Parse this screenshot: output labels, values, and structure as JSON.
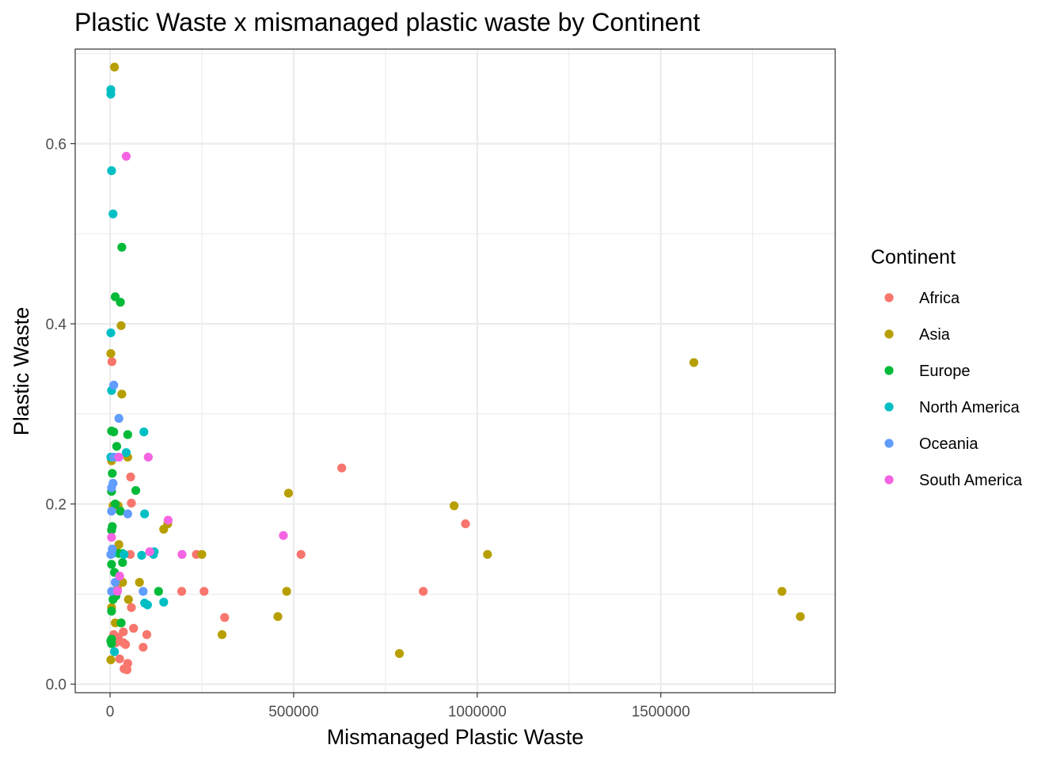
{
  "chart_data": {
    "type": "scatter",
    "title": "Plastic Waste x mismanaged plastic waste by Continent",
    "xlabel": "Mismanaged Plastic Waste",
    "ylabel": "Plastic Waste",
    "xlim": [
      -95000,
      1975000
    ],
    "ylim": [
      -0.0095,
      0.705
    ],
    "x_ticks": [
      0,
      500000,
      1000000,
      1500000
    ],
    "x_tick_labels": [
      "0",
      "500000",
      "1000000",
      "1500000"
    ],
    "x_minor_ticks": [
      250000,
      750000,
      1250000,
      1750000
    ],
    "y_ticks": [
      0.0,
      0.2,
      0.4,
      0.6
    ],
    "y_tick_labels": [
      "0.0",
      "0.2",
      "0.4",
      "0.6"
    ],
    "y_minor_ticks": [
      0.1,
      0.3,
      0.5,
      0.7
    ],
    "grid": true,
    "legend": {
      "title": "Continent",
      "position": "right"
    },
    "series": [
      {
        "name": "Africa",
        "color": "#F8766D",
        "points": [
          [
            631000,
            0.24
          ],
          [
            968000,
            0.178
          ],
          [
            520000,
            0.144
          ],
          [
            853000,
            0.103
          ],
          [
            312000,
            0.074
          ],
          [
            256000,
            0.103
          ],
          [
            235000,
            0.144
          ],
          [
            195000,
            0.103
          ],
          [
            56000,
            0.23
          ],
          [
            58000,
            0.201
          ],
          [
            55000,
            0.144
          ],
          [
            58000,
            0.085
          ],
          [
            64000,
            0.062
          ],
          [
            100000,
            0.055
          ],
          [
            90000,
            0.041
          ],
          [
            36000,
            0.058
          ],
          [
            42000,
            0.044
          ],
          [
            36000,
            0.046
          ],
          [
            48000,
            0.023
          ],
          [
            38000,
            0.017
          ],
          [
            46000,
            0.016
          ],
          [
            26000,
            0.028
          ],
          [
            22000,
            0.052
          ],
          [
            10000,
            0.055
          ],
          [
            16000,
            0.046
          ],
          [
            5000,
            0.358
          ],
          [
            20000,
            0.106
          ]
        ]
      },
      {
        "name": "Asia",
        "color": "#B79F00",
        "points": [
          [
            1590000,
            0.357
          ],
          [
            1880000,
            0.075
          ],
          [
            1830000,
            0.103
          ],
          [
            1028000,
            0.144
          ],
          [
            937000,
            0.198
          ],
          [
            788000,
            0.034
          ],
          [
            486000,
            0.212
          ],
          [
            481000,
            0.103
          ],
          [
            457000,
            0.075
          ],
          [
            305000,
            0.055
          ],
          [
            250000,
            0.144
          ],
          [
            157000,
            0.178
          ],
          [
            146000,
            0.172
          ],
          [
            80000,
            0.113
          ],
          [
            48000,
            0.252
          ],
          [
            50000,
            0.094
          ],
          [
            34000,
            0.113
          ],
          [
            32000,
            0.322
          ],
          [
            30000,
            0.398
          ],
          [
            12000,
            0.685
          ],
          [
            2000,
            0.367
          ],
          [
            4000,
            0.248
          ],
          [
            8000,
            0.198
          ],
          [
            24000,
            0.155
          ],
          [
            16000,
            0.15
          ],
          [
            4000,
            0.085
          ],
          [
            14000,
            0.068
          ],
          [
            30000,
            0.068
          ],
          [
            2000,
            0.027
          ],
          [
            22000,
            0.198
          ]
        ]
      },
      {
        "name": "Europe",
        "color": "#00BA38",
        "points": [
          [
            32000,
            0.485
          ],
          [
            14000,
            0.43
          ],
          [
            28000,
            0.424
          ],
          [
            4000,
            0.281
          ],
          [
            10000,
            0.28
          ],
          [
            48000,
            0.277
          ],
          [
            18000,
            0.264
          ],
          [
            6000,
            0.234
          ],
          [
            4000,
            0.214
          ],
          [
            70000,
            0.215
          ],
          [
            14000,
            0.2
          ],
          [
            28000,
            0.192
          ],
          [
            6000,
            0.175
          ],
          [
            4000,
            0.171
          ],
          [
            24000,
            0.145
          ],
          [
            34000,
            0.145
          ],
          [
            4000,
            0.133
          ],
          [
            34000,
            0.135
          ],
          [
            12000,
            0.124
          ],
          [
            132000,
            0.103
          ],
          [
            16000,
            0.098
          ],
          [
            8000,
            0.094
          ],
          [
            4000,
            0.081
          ],
          [
            30000,
            0.068
          ],
          [
            4000,
            0.05
          ],
          [
            4000,
            0.045
          ],
          [
            2000,
            0.048
          ]
        ]
      },
      {
        "name": "North America",
        "color": "#00BFC4",
        "points": [
          [
            2000,
            0.66
          ],
          [
            2000,
            0.655
          ],
          [
            4000,
            0.57
          ],
          [
            8000,
            0.522
          ],
          [
            2000,
            0.39
          ],
          [
            4000,
            0.326
          ],
          [
            92000,
            0.28
          ],
          [
            44000,
            0.257
          ],
          [
            2000,
            0.252
          ],
          [
            94000,
            0.189
          ],
          [
            120000,
            0.147
          ],
          [
            118000,
            0.144
          ],
          [
            86000,
            0.143
          ],
          [
            146000,
            0.091
          ],
          [
            102000,
            0.088
          ],
          [
            94000,
            0.09
          ],
          [
            12000,
            0.036
          ],
          [
            6000,
            0.145
          ],
          [
            38000,
            0.144
          ]
        ]
      },
      {
        "name": "Oceania",
        "color": "#619CFF",
        "points": [
          [
            10000,
            0.332
          ],
          [
            24000,
            0.295
          ],
          [
            8000,
            0.223
          ],
          [
            4000,
            0.218
          ],
          [
            48000,
            0.189
          ],
          [
            4000,
            0.192
          ],
          [
            6000,
            0.15
          ],
          [
            2000,
            0.144
          ],
          [
            4000,
            0.103
          ],
          [
            14000,
            0.113
          ],
          [
            90000,
            0.103
          ],
          [
            10000,
            0.252
          ],
          [
            22000,
            0.252
          ]
        ]
      },
      {
        "name": "South America",
        "color": "#F564E3",
        "points": [
          [
            44000,
            0.586
          ],
          [
            104000,
            0.252
          ],
          [
            24000,
            0.252
          ],
          [
            158000,
            0.182
          ],
          [
            472000,
            0.165
          ],
          [
            196000,
            0.144
          ],
          [
            108000,
            0.147
          ],
          [
            26000,
            0.12
          ],
          [
            4000,
            0.163
          ],
          [
            20000,
            0.103
          ]
        ]
      }
    ]
  }
}
